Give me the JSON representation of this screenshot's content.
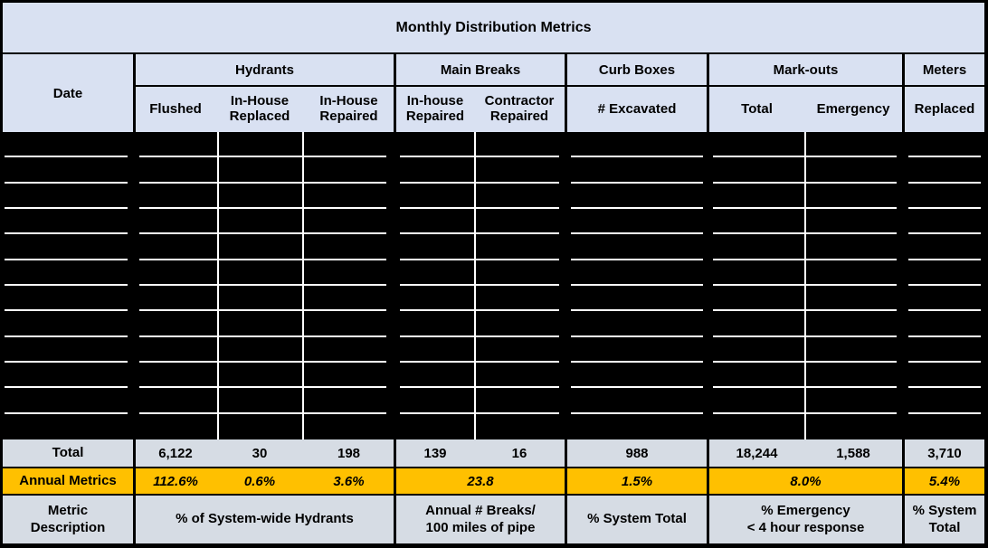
{
  "chart_data": {
    "type": "table",
    "title": "Monthly Distribution Metrics",
    "columns": {
      "date_label": "Date",
      "groups": [
        {
          "label": "Hydrants",
          "subs": [
            [
              "Flushed"
            ],
            [
              "In-House",
              "Replaced"
            ],
            [
              "In-House",
              "Repaired"
            ]
          ]
        },
        {
          "label": "Main Breaks",
          "subs": [
            [
              "In-house",
              "Repaired"
            ],
            [
              "Contractor",
              "Repaired"
            ]
          ]
        },
        {
          "label": "Curb Boxes",
          "subs": [
            [
              "# Excavated"
            ]
          ]
        },
        {
          "label": "Mark-outs",
          "subs": [
            [
              "Total"
            ],
            [
              "Emergency"
            ]
          ]
        },
        {
          "label": "Meters",
          "subs": [
            [
              "Replaced"
            ]
          ]
        }
      ]
    },
    "monthly_rows": {
      "count": 12,
      "state": "redacted-black"
    },
    "totals": {
      "label": "Total",
      "values": {
        "hydrants_flushed": "6,122",
        "hydrants_inhouse_replaced": "30",
        "hydrants_inhouse_repaired": "198",
        "mainbreaks_inhouse_repaired": "139",
        "mainbreaks_contractor_repaired": "16",
        "curbboxes_excavated": "988",
        "markouts_total": "18,244",
        "markouts_emergency": "1,588",
        "meters_replaced": "3,710"
      }
    },
    "annual_metrics": {
      "label": "Annual Metrics",
      "values": {
        "hydrants_flushed": "112.6%",
        "hydrants_inhouse_replaced": "0.6%",
        "hydrants_inhouse_repaired": "3.6%",
        "main_breaks": "23.8",
        "curb_boxes": "1.5%",
        "mark_outs": "8.0%",
        "meters": "5.4%"
      }
    },
    "metric_description": {
      "label": [
        "Metric",
        "Description"
      ],
      "values": {
        "hydrants": "% of System-wide Hydrants",
        "main_breaks": [
          "Annual # Breaks/",
          "100 miles of pipe"
        ],
        "curb_boxes": "% System Total",
        "mark_outs": [
          "% Emergency",
          "< 4 hour response"
        ],
        "meters": [
          "% System",
          "Total"
        ]
      }
    }
  },
  "colors": {
    "header_fill": "#D9E1F2",
    "summary_fill": "#D6DCE4",
    "annual_fill": "#FFC000",
    "border": "#000000",
    "redacted_fill": "#000000",
    "gridline": "#FFFFFF"
  }
}
